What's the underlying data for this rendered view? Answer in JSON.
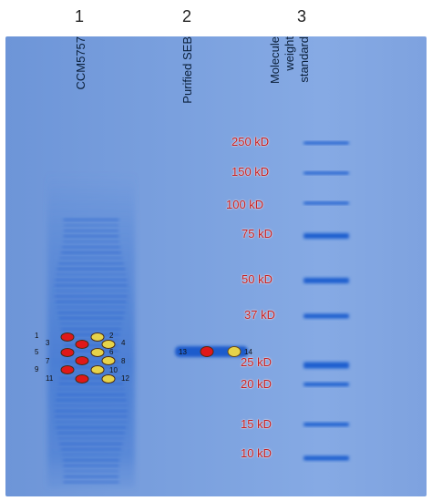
{
  "lanes": {
    "numbers": [
      "1",
      "2",
      "3"
    ],
    "labels": {
      "lane1": "CCM5757",
      "lane2": "Purified SEB",
      "lane3": [
        "Molecule",
        "weight",
        "standard"
      ]
    }
  },
  "markers": [
    "250 kD",
    "150 kD",
    "100 kD",
    "75 kD",
    "50 kD",
    "37 kD",
    "25 kD",
    "20 kD",
    "15 kD",
    "10 kD"
  ],
  "spots": {
    "lane1_numbers": [
      "1",
      "2",
      "3",
      "4",
      "5",
      "6",
      "7",
      "8",
      "9",
      "10",
      "11",
      "12"
    ],
    "lane2_numbers": [
      "13",
      "14"
    ]
  },
  "colors": {
    "gel": "#7aa0de",
    "band": "#1f5fcf",
    "marker_text": "#c81e1e",
    "spot_red": "#e01818",
    "spot_yellow": "#e6d34a"
  }
}
